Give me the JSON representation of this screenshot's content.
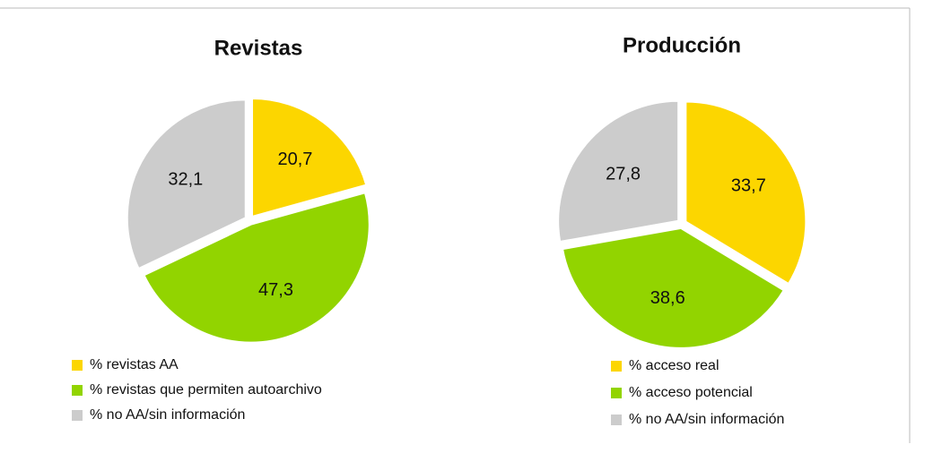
{
  "chart_data": [
    {
      "type": "pie",
      "title": "Revistas",
      "categories": [
        "% revistas AA",
        "% revistas que permiten autoarchivo",
        "% no AA/sin información"
      ],
      "values": [
        20.7,
        47.3,
        32.1
      ],
      "value_labels": [
        "20,7",
        "47,3",
        "32,1"
      ],
      "colors": [
        "#fcd600",
        "#92d400",
        "#cccccc"
      ]
    },
    {
      "type": "pie",
      "title": "Producción",
      "categories": [
        "% acceso real",
        "% acceso potencial",
        "% no AA/sin información"
      ],
      "values": [
        33.7,
        38.6,
        27.8
      ],
      "value_labels": [
        "33,7",
        "38,6",
        "27,8"
      ],
      "colors": [
        "#fcd600",
        "#92d400",
        "#cccccc"
      ]
    }
  ]
}
